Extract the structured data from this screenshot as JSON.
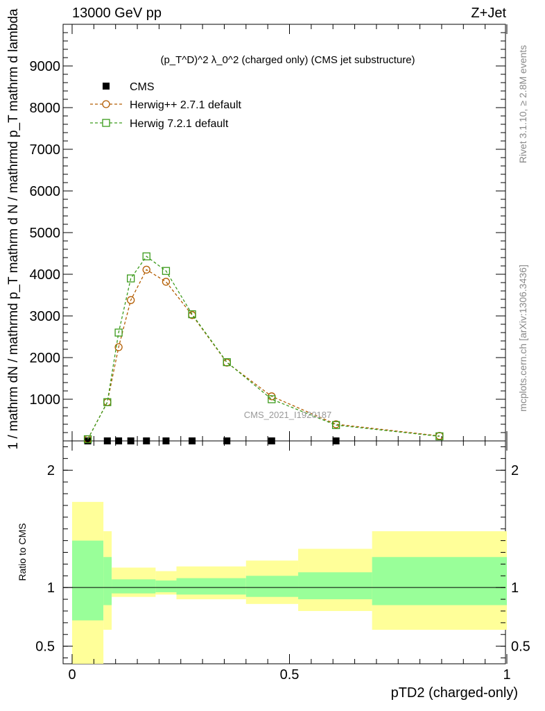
{
  "header": {
    "left": "13000 GeV pp",
    "right": "Z+Jet"
  },
  "side_labels": {
    "rivet": "Rivet 3.1.10, ≥ 2.8M events",
    "mcplots": "mcplots.cern.ch [arXiv:1306.3436]"
  },
  "colors": {
    "cms": "#000000",
    "herwigpp": "#b35c00",
    "herwig7": "#3a9a1a",
    "band_inner": "#99ff99",
    "band_outer": "#ffff99"
  },
  "chart_data": [
    {
      "type": "line",
      "title": "(p_T^D)^2 λ_0^2 (charged only) (CMS jet substructure)",
      "ylabel": "1 / mathrm dN / mathrmd p_T mathrm d N / mathrmd p_T mathrm d lambda",
      "ylim": [
        0,
        10000
      ],
      "xlim": [
        0,
        1
      ],
      "yticks": [
        1000,
        2000,
        3000,
        4000,
        5000,
        6000,
        7000,
        8000,
        9000
      ],
      "watermark": "CMS_2021_I1920187",
      "legend": {
        "placement": "top-left",
        "entries": [
          "CMS",
          "Herwig++ 2.7.1 default",
          "Herwig 7.2.1 default"
        ]
      },
      "series": [
        {
          "name": "CMS",
          "marker": "square",
          "x": [
            0.036,
            0.081,
            0.107,
            0.135,
            0.171,
            0.216,
            0.276,
            0.356,
            0.459,
            0.607
          ],
          "y": [
            0,
            0,
            0,
            0,
            0,
            0,
            0,
            0,
            0,
            0
          ]
        },
        {
          "name": "Herwig++ 2.7.1 default",
          "marker": "circle",
          "x": [
            0.036,
            0.081,
            0.107,
            0.135,
            0.171,
            0.216,
            0.276,
            0.356,
            0.459,
            0.607,
            0.845
          ],
          "y": [
            40,
            930,
            2250,
            3380,
            4110,
            3820,
            3020,
            1880,
            1070,
            400,
            120
          ]
        },
        {
          "name": "Herwig 7.2.1 default",
          "marker": "square-open",
          "x": [
            0.036,
            0.081,
            0.107,
            0.135,
            0.171,
            0.216,
            0.276,
            0.356,
            0.459,
            0.607,
            0.845
          ],
          "y": [
            40,
            930,
            2600,
            3900,
            4430,
            4080,
            3040,
            1890,
            1000,
            380,
            110
          ]
        }
      ]
    },
    {
      "type": "area",
      "ylabel": "Ratio to CMS",
      "xlabel": "pTD2 (charged-only)",
      "xlim": [
        0,
        1
      ],
      "ylim": [
        0.35,
        2.25
      ],
      "xticks": [
        0,
        0.5,
        1
      ],
      "yticks": [
        0.5,
        1,
        2
      ],
      "reference_line": 1,
      "bins": [
        {
          "lo": 0.0,
          "hi": 0.072,
          "inner": [
            0.72,
            1.4
          ],
          "outer": [
            0.35,
            1.73
          ]
        },
        {
          "lo": 0.072,
          "hi": 0.091,
          "inner": [
            0.85,
            1.26
          ],
          "outer": [
            0.64,
            1.48
          ]
        },
        {
          "lo": 0.091,
          "hi": 0.192,
          "inner": [
            0.95,
            1.07
          ],
          "outer": [
            0.92,
            1.17
          ]
        },
        {
          "lo": 0.192,
          "hi": 0.24,
          "inner": [
            0.96,
            1.06
          ],
          "outer": [
            0.94,
            1.14
          ]
        },
        {
          "lo": 0.24,
          "hi": 0.4,
          "inner": [
            0.94,
            1.08
          ],
          "outer": [
            0.9,
            1.18
          ]
        },
        {
          "lo": 0.4,
          "hi": 0.52,
          "inner": [
            0.92,
            1.1
          ],
          "outer": [
            0.86,
            1.23
          ]
        },
        {
          "lo": 0.52,
          "hi": 0.69,
          "inner": [
            0.9,
            1.13
          ],
          "outer": [
            0.8,
            1.33
          ]
        },
        {
          "lo": 0.69,
          "hi": 1.0,
          "inner": [
            0.85,
            1.26
          ],
          "outer": [
            0.64,
            1.48
          ]
        }
      ]
    }
  ]
}
